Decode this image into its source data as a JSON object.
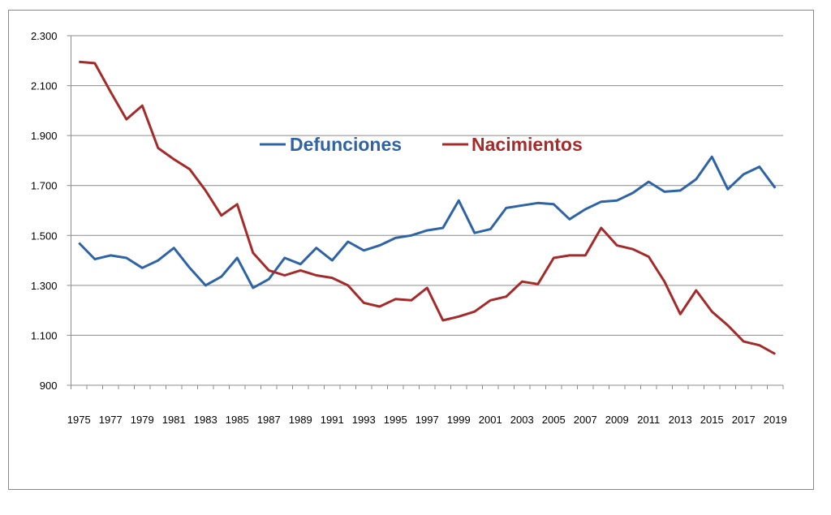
{
  "chart_data": {
    "type": "line",
    "title": "",
    "xlabel": "",
    "ylabel": "",
    "ylim": [
      900,
      2300
    ],
    "yticks": [
      "900",
      "1.100",
      "1.300",
      "1.500",
      "1.700",
      "1.900",
      "2.100",
      "2.300"
    ],
    "ytick_values": [
      900,
      1100,
      1300,
      1500,
      1700,
      1900,
      2100,
      2300
    ],
    "grid": "horizontal",
    "legend_position": "center-top",
    "x": [
      1975,
      1976,
      1977,
      1978,
      1979,
      1980,
      1981,
      1982,
      1983,
      1984,
      1985,
      1986,
      1987,
      1988,
      1989,
      1990,
      1991,
      1992,
      1993,
      1994,
      1995,
      1996,
      1997,
      1998,
      1999,
      2000,
      2001,
      2002,
      2003,
      2004,
      2005,
      2006,
      2007,
      2008,
      2009,
      2010,
      2011,
      2012,
      2013,
      2014,
      2015,
      2016,
      2017,
      2018,
      2019
    ],
    "xtick_labels": [
      "1975",
      "1977",
      "1979",
      "1981",
      "1983",
      "1985",
      "1987",
      "1989",
      "1991",
      "1993",
      "1995",
      "1997",
      "1999",
      "2001",
      "2003",
      "2005",
      "2007",
      "2009",
      "2011",
      "2013",
      "2015",
      "2017",
      "2019"
    ],
    "series": [
      {
        "name": "Defunciones",
        "color": "#2e64a6",
        "values": [
          1470,
          1405,
          1420,
          1410,
          1370,
          1400,
          1450,
          1370,
          1300,
          1335,
          1410,
          1290,
          1325,
          1410,
          1385,
          1450,
          1400,
          1475,
          1440,
          1460,
          1490,
          1500,
          1520,
          1530,
          1640,
          1510,
          1525,
          1610,
          1620,
          1630,
          1625,
          1565,
          1605,
          1635,
          1640,
          1670,
          1715,
          1675,
          1680,
          1725,
          1815,
          1685,
          1745,
          1775,
          1690
        ]
      },
      {
        "name": "Nacimientos",
        "color": "#a52a2a",
        "values": [
          2195,
          2190,
          2075,
          1965,
          2020,
          1850,
          1805,
          1765,
          1680,
          1580,
          1625,
          1430,
          1360,
          1340,
          1360,
          1340,
          1330,
          1300,
          1230,
          1215,
          1245,
          1240,
          1290,
          1160,
          1175,
          1195,
          1240,
          1255,
          1315,
          1305,
          1410,
          1420,
          1420,
          1530,
          1460,
          1445,
          1415,
          1315,
          1185,
          1280,
          1195,
          1140,
          1075,
          1060,
          1025
        ]
      }
    ]
  }
}
